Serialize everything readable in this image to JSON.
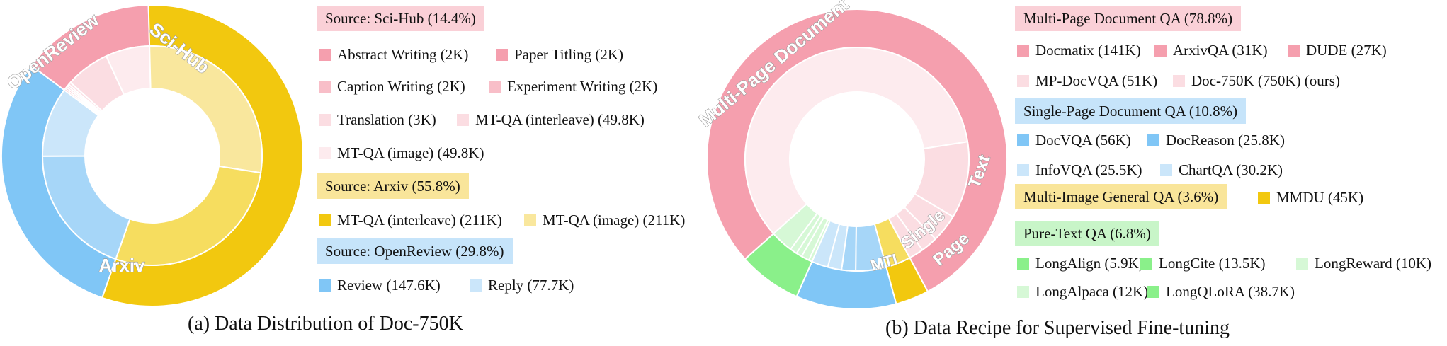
{
  "colors": {
    "pink": "#F59FAE",
    "pink_mid": "#F8BEC8",
    "pink_light": "#FBDDE2",
    "pink_pale": "#FDEBEE",
    "yellow": "#F2C80F",
    "yellow_mid": "#F6DD5F",
    "yellow_light": "#F9E79D",
    "blue": "#80C6F6",
    "blue_mid": "#A6D6F8",
    "blue_light": "#CBE6FA",
    "green": "#8AF08A",
    "green_mid": "#B0F3B0",
    "green_light": "#D6F8D6",
    "hdr_pink": "#FAD0D7",
    "hdr_yellow": "#F9E59A",
    "hdr_blue": "#C6E4FA",
    "hdr_green": "#C8F5C8"
  },
  "chart_data": [
    {
      "type": "sunburst",
      "caption": "(a) Data Distribution of Doc-750K",
      "outer": [
        {
          "name": "Sci-Hub",
          "label": "Sci-Hub",
          "value": 14.4,
          "color": "pink"
        },
        {
          "name": "Arxiv",
          "label": "Arxiv",
          "value": 55.8,
          "color": "yellow"
        },
        {
          "name": "OpenReview",
          "label": "OpenReview",
          "value": 29.8,
          "color": "blue"
        }
      ],
      "inner": [
        {
          "name": "Abstract Writing",
          "value": 2,
          "color": "pink"
        },
        {
          "name": "Paper Titling",
          "value": 2,
          "color": "pink"
        },
        {
          "name": "Caption Writing",
          "value": 2,
          "color": "pink_mid"
        },
        {
          "name": "Experiment Writing",
          "value": 2,
          "color": "pink_mid"
        },
        {
          "name": "Translation",
          "value": 3,
          "color": "pink_light"
        },
        {
          "name": "MT-QA (interleave)",
          "value": 49.8,
          "color": "pink_light"
        },
        {
          "name": "MT-QA (image)",
          "value": 49.8,
          "color": "pink_pale"
        },
        {
          "name": "MT-QA (interleave)",
          "value": 211,
          "color": "yellow_light"
        },
        {
          "name": "MT-QA (image)",
          "value": 211,
          "color": "yellow_mid"
        },
        {
          "name": "Review",
          "value": 147.6,
          "color": "blue_mid"
        },
        {
          "name": "Reply",
          "value": 77.7,
          "color": "blue_light"
        }
      ],
      "legend_groups": [
        {
          "header": "Source: Sci-Hub (14.4%)",
          "hdr_color": "hdr_pink",
          "items": [
            [
              "Abstract Writing (2K)",
              "pink"
            ],
            [
              "Paper Titling (2K)",
              "pink"
            ],
            [
              "Caption Writing (2K)",
              "pink_mid"
            ],
            [
              "Experiment Writing (2K)",
              "pink_mid"
            ],
            [
              "Translation (3K)",
              "pink_light"
            ],
            [
              "MT-QA (interleave) (49.8K)",
              "pink_light"
            ],
            [
              "MT-QA (image) (49.8K)",
              "pink_pale"
            ]
          ]
        },
        {
          "header": "Source: Arxiv (55.8%)",
          "hdr_color": "hdr_yellow",
          "items": [
            [
              "MT-QA (interleave) (211K)",
              "yellow"
            ],
            [
              "MT-QA (image) (211K)",
              "yellow_light"
            ]
          ]
        },
        {
          "header": "Source: OpenReview (29.8%)",
          "hdr_color": "hdr_blue",
          "items": [
            [
              "Review (147.6K)",
              "blue"
            ],
            [
              "Reply (77.7K)",
              "blue_light"
            ]
          ]
        }
      ]
    },
    {
      "type": "sunburst",
      "caption": "(b) Data Recipe for Supervised Fine-tuning",
      "outer": [
        {
          "name": "Multi-Page Document QA",
          "label": "Multi-Page Document",
          "value": 78.8,
          "color": "pink"
        },
        {
          "name": "Multi-Image General QA",
          "label": "MTI",
          "value": 3.6,
          "color": "yellow"
        },
        {
          "name": "Single-Page Document QA",
          "label": "Single Page",
          "value": 10.8,
          "color": "blue"
        },
        {
          "name": "Pure-Text QA",
          "label": "Text",
          "value": 6.8,
          "color": "green"
        }
      ],
      "inner": [
        {
          "name": "Doc-750K",
          "value": 750,
          "color": "pink_pale"
        },
        {
          "name": "Docmatix",
          "value": 141,
          "color": "pink_light"
        },
        {
          "name": "MP-DocVQA",
          "value": 51,
          "color": "pink_light"
        },
        {
          "name": "ArxivQA",
          "value": 31,
          "color": "pink_light"
        },
        {
          "name": "DUDE",
          "value": 27,
          "color": "pink_light"
        },
        {
          "name": "MMDU",
          "value": 45,
          "color": "yellow_mid"
        },
        {
          "name": "DocVQA",
          "value": 56,
          "color": "blue_mid"
        },
        {
          "name": "DocReason",
          "value": 25.8,
          "color": "blue_mid"
        },
        {
          "name": "InfoVQA",
          "value": 25.5,
          "color": "blue_light"
        },
        {
          "name": "ChartQA",
          "value": 30.2,
          "color": "blue_light"
        },
        {
          "name": "LongAlign",
          "value": 5.9,
          "color": "green_light"
        },
        {
          "name": "LongCite",
          "value": 13.5,
          "color": "green_light"
        },
        {
          "name": "LongReward",
          "value": 10,
          "color": "green_light"
        },
        {
          "name": "LongAlpaca",
          "value": 12,
          "color": "green_light"
        },
        {
          "name": "LongQLoRA",
          "value": 38.7,
          "color": "green_light"
        }
      ],
      "legend_groups": [
        {
          "header": "Multi-Page Document QA (78.8%)",
          "hdr_color": "hdr_pink",
          "items": [
            [
              "Docmatix (141K)",
              "pink"
            ],
            [
              "ArxivQA (31K)",
              "pink"
            ],
            [
              "DUDE (27K)",
              "pink"
            ],
            [
              "MP-DocVQA (51K)",
              "pink_light"
            ],
            [
              "Doc-750K (750K) (ours)",
              "pink_light"
            ]
          ]
        },
        {
          "header": "Single-Page Document QA (10.8%)",
          "hdr_color": "hdr_blue",
          "items": [
            [
              "DocVQA (56K)",
              "blue"
            ],
            [
              "DocReason (25.8K)",
              "blue"
            ],
            [
              "InfoVQA (25.5K)",
              "blue_light"
            ],
            [
              "ChartQA (30.2K)",
              "blue_light"
            ]
          ]
        },
        {
          "header": "Multi-Image General QA (3.6%)",
          "hdr_color": "hdr_yellow",
          "items": [
            [
              "MMDU (45K)",
              "yellow"
            ]
          ]
        },
        {
          "header": "Pure-Text QA (6.8%)",
          "hdr_color": "hdr_green",
          "items": [
            [
              "LongAlign (5.9K)",
              "green"
            ],
            [
              "LongCite (13.5K)",
              "green"
            ],
            [
              "LongReward (10K)",
              "green_light"
            ],
            [
              "LongAlpaca (12K)",
              "green_light"
            ],
            [
              "LongQLoRA (38.7K)",
              "green"
            ]
          ]
        }
      ]
    }
  ]
}
